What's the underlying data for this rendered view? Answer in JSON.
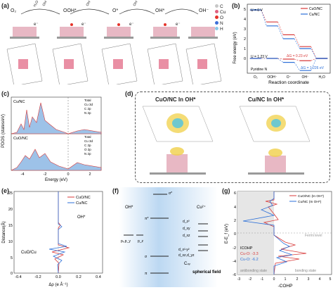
{
  "panels": {
    "a": {
      "letter": "(a)",
      "species": [
        "O₂",
        "OOH*",
        "O*",
        "OH*",
        "OH⁻"
      ],
      "over_arrow_labels": [
        "H₂O",
        "OH⁻",
        "OH⁻",
        "OH⁻"
      ],
      "electron": "e⁻",
      "legend": [
        {
          "symbol": "C",
          "color": "#c7c7c7"
        },
        {
          "symbol": "Cu",
          "color": "#e0607e"
        },
        {
          "symbol": "O",
          "color": "#e5332a"
        },
        {
          "symbol": "N",
          "color": "#3d6fd8"
        },
        {
          "symbol": "H",
          "color": "#8cc8e8"
        }
      ]
    },
    "b": {
      "letter": "(b)",
      "ylabel": "Free energy (eV)",
      "xlabel": "Reaction coordinate",
      "yticks": [
        "5",
        "4",
        "3",
        "2",
        "1",
        "0"
      ],
      "xticks": [
        "O₂",
        "OOH⁻",
        "O⁻",
        "OH⁻",
        "H₂O"
      ],
      "legend": [
        "CuO/NC",
        "Cu/NC"
      ],
      "annotations": {
        "u0": "U = 0 V",
        "u123": "U = 1.23 V",
        "pyridine": "Pyridine N",
        "dg1": "ΔG = 0.23 eV",
        "dg2": "ΔG = 1.226 eV"
      },
      "colors": {
        "cuo": "#d83a3a",
        "cu": "#2b6fd8"
      }
    },
    "c": {
      "letter": "(c)",
      "ylabel": "PDOS (states/eV)",
      "xlabel": "Energy (eV)",
      "top_label": "Cu/NC",
      "bottom_label": "CuO/NC",
      "xticks": [
        "-4",
        "-2",
        "0",
        "2"
      ],
      "legend_top": [
        "Total",
        "Cu 3d",
        "C 2p",
        "N 2p"
      ],
      "legend_bottom": [
        "Total",
        "Cu 3d",
        "C 2p",
        "O 2p",
        "N 2p"
      ]
    },
    "d": {
      "letter": "(d)",
      "left_title": "CuO/NC In OH*",
      "right_title": "Cu/NC In OH*"
    },
    "e": {
      "letter": "(e)",
      "ylabel": "Distance(Å)",
      "xlabel": "Δρ (e Å⁻¹)",
      "legend": [
        "CuO/NC",
        "Cu/NC"
      ],
      "annotation_oh": "OH*",
      "annotation_cuo": "CuO/Cu",
      "yticks": [
        "25",
        "20",
        "15",
        "10",
        "5",
        "0"
      ],
      "xticks": [
        "-0.4",
        "-0.2",
        "0.0",
        "0.2",
        "0.4"
      ]
    },
    "f": {
      "letter": "(f)",
      "left_label": "OH*",
      "right_label": "Cu²⁺",
      "orbitals_left": [
        "pₓ,p_y",
        "p_z"
      ],
      "orbitals_mid": [
        "σ*",
        "π*",
        "σ",
        "π"
      ],
      "orbitals_right": [
        "d_z²",
        "d_xy",
        "d_xz",
        "d_x²-y²",
        "d_xz,d_yz"
      ],
      "sym": "C₄ᵥ",
      "field": "spherical field"
    },
    "g": {
      "letter": "(g)",
      "ylabel": "E-E_f (eV)",
      "xlabel": "-COHP",
      "legend": [
        "CuO/NC (In OH*)",
        "Cu/NC (In OH*)"
      ],
      "fermi": "Fermi level",
      "icohp_title": "ICOHP",
      "icohp": [
        {
          "label": "Cu-O: -3.3",
          "color": "#d83a3a"
        },
        {
          "label": "Cu-O: -6.2",
          "color": "#2b6fd8"
        }
      ],
      "antibonding": "antibonding state",
      "bonding": "bonding state",
      "yticks": [
        "6",
        "4",
        "2",
        "0",
        "-2",
        "-4",
        "-6"
      ],
      "xticks": [
        "-3",
        "-2",
        "-1",
        "0",
        "1",
        "2",
        "3",
        "4",
        "5"
      ]
    }
  },
  "chart_data": [
    {
      "type": "line",
      "title": "",
      "xlabel": "Reaction coordinate",
      "ylabel": "Free energy (eV)",
      "categories": [
        "O₂",
        "OOH⁻",
        "O⁻",
        "OH⁻",
        "H₂O"
      ],
      "ylim": [
        0,
        5
      ],
      "series": [
        {
          "name": "CuO/NC",
          "values": [
            4.92,
            3.7,
            2.4,
            1.2,
            0.0
          ]
        },
        {
          "name": "Cu/NC",
          "values": [
            4.92,
            3.3,
            2.0,
            1.0,
            0.0
          ]
        },
        {
          "name": "CuO/NC",
          "values": [
            0.0,
            0.0,
            -0.07,
            -0.23,
            0.0
          ]
        },
        {
          "name": "Cu/NC",
          "values": [
            0.0,
            0.0,
            -0.4,
            -1.226,
            0.0
          ]
        }
      ]
    }
  ]
}
